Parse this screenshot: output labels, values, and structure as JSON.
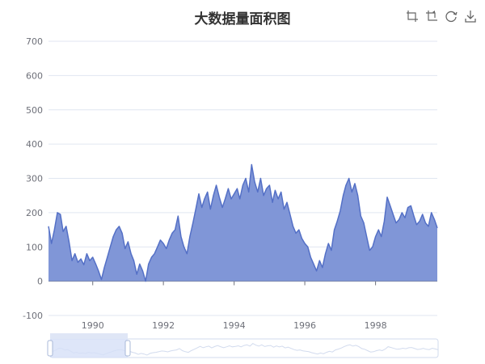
{
  "title": "大数据量面积图",
  "toolbox": {
    "icons": [
      "zoom-select-icon",
      "zoom-reset-icon",
      "restore-icon",
      "save-image-icon"
    ]
  },
  "colors": {
    "line": "#5470c6",
    "area": "#8096d7",
    "grid": "#e0e6f1",
    "axis": "#6e7079",
    "slider_fill": "#d6e0f7",
    "slider_border": "#d2dbee",
    "handle": "#a8b8d8"
  },
  "chart_data": {
    "type": "area",
    "title": "大数据量面积图",
    "xlabel": "",
    "ylabel": "",
    "ylim": [
      -100,
      700
    ],
    "y_ticks": [
      -100,
      0,
      100,
      200,
      300,
      400,
      500,
      600,
      700
    ],
    "x_tick_labels": [
      "1990",
      "1992",
      "1994",
      "1996",
      "1998"
    ],
    "x_range": [
      "1988-10-01",
      "1999-10-01"
    ],
    "series": [
      {
        "values": [
          [
            "1988-10-01",
            160
          ],
          [
            "1988-11-01",
            110
          ],
          [
            "1988-12-01",
            150
          ],
          [
            "1989-01-01",
            200
          ],
          [
            "1989-02-01",
            195
          ],
          [
            "1989-03-01",
            145
          ],
          [
            "1989-04-01",
            160
          ],
          [
            "1989-05-01",
            115
          ],
          [
            "1989-06-01",
            60
          ],
          [
            "1989-07-01",
            80
          ],
          [
            "1989-08-01",
            55
          ],
          [
            "1989-09-01",
            65
          ],
          [
            "1989-10-01",
            48
          ],
          [
            "1989-11-01",
            80
          ],
          [
            "1989-12-01",
            60
          ],
          [
            "1990-01-01",
            70
          ],
          [
            "1990-02-01",
            50
          ],
          [
            "1990-03-01",
            30
          ],
          [
            "1990-04-01",
            5
          ],
          [
            "1990-05-01",
            40
          ],
          [
            "1990-06-01",
            70
          ],
          [
            "1990-07-01",
            100
          ],
          [
            "1990-08-01",
            130
          ],
          [
            "1990-09-01",
            150
          ],
          [
            "1990-10-01",
            160
          ],
          [
            "1990-11-01",
            140
          ],
          [
            "1990-12-01",
            95
          ],
          [
            "1991-01-01",
            115
          ],
          [
            "1991-02-01",
            80
          ],
          [
            "1991-03-01",
            60
          ],
          [
            "1991-04-01",
            20
          ],
          [
            "1991-05-01",
            50
          ],
          [
            "1991-06-01",
            30
          ],
          [
            "1991-07-01",
            0
          ],
          [
            "1991-08-01",
            50
          ],
          [
            "1991-09-01",
            70
          ],
          [
            "1991-10-01",
            80
          ],
          [
            "1991-11-01",
            100
          ],
          [
            "1991-12-01",
            120
          ],
          [
            "1992-01-01",
            110
          ],
          [
            "1992-02-01",
            95
          ],
          [
            "1992-03-01",
            120
          ],
          [
            "1992-04-01",
            140
          ],
          [
            "1992-05-01",
            150
          ],
          [
            "1992-06-01",
            190
          ],
          [
            "1992-07-01",
            130
          ],
          [
            "1992-08-01",
            100
          ],
          [
            "1992-09-01",
            80
          ],
          [
            "1992-10-01",
            130
          ],
          [
            "1992-11-01",
            170
          ],
          [
            "1992-12-01",
            210
          ],
          [
            "1993-01-01",
            255
          ],
          [
            "1993-02-01",
            215
          ],
          [
            "1993-03-01",
            240
          ],
          [
            "1993-04-01",
            260
          ],
          [
            "1993-05-01",
            210
          ],
          [
            "1993-06-01",
            250
          ],
          [
            "1993-07-01",
            280
          ],
          [
            "1993-08-01",
            245
          ],
          [
            "1993-09-01",
            215
          ],
          [
            "1993-10-01",
            240
          ],
          [
            "1993-11-01",
            270
          ],
          [
            "1993-12-01",
            240
          ],
          [
            "1994-01-01",
            255
          ],
          [
            "1994-02-01",
            270
          ],
          [
            "1994-03-01",
            240
          ],
          [
            "1994-04-01",
            280
          ],
          [
            "1994-05-01",
            300
          ],
          [
            "1994-06-01",
            260
          ],
          [
            "1994-07-01",
            340
          ],
          [
            "1994-08-01",
            290
          ],
          [
            "1994-09-01",
            260
          ],
          [
            "1994-10-01",
            300
          ],
          [
            "1994-11-01",
            250
          ],
          [
            "1994-12-01",
            270
          ],
          [
            "1995-01-01",
            280
          ],
          [
            "1995-02-01",
            230
          ],
          [
            "1995-03-01",
            265
          ],
          [
            "1995-04-01",
            240
          ],
          [
            "1995-05-01",
            260
          ],
          [
            "1995-06-01",
            210
          ],
          [
            "1995-07-01",
            230
          ],
          [
            "1995-08-01",
            195
          ],
          [
            "1995-09-01",
            160
          ],
          [
            "1995-10-01",
            140
          ],
          [
            "1995-11-01",
            150
          ],
          [
            "1995-12-01",
            125
          ],
          [
            "1996-01-01",
            110
          ],
          [
            "1996-02-01",
            100
          ],
          [
            "1996-03-01",
            70
          ],
          [
            "1996-04-01",
            50
          ],
          [
            "1996-05-01",
            30
          ],
          [
            "1996-06-01",
            60
          ],
          [
            "1996-07-01",
            40
          ],
          [
            "1996-08-01",
            80
          ],
          [
            "1996-09-01",
            110
          ],
          [
            "1996-10-01",
            90
          ],
          [
            "1996-11-01",
            150
          ],
          [
            "1996-12-01",
            175
          ],
          [
            "1997-01-01",
            205
          ],
          [
            "1997-02-01",
            250
          ],
          [
            "1997-03-01",
            280
          ],
          [
            "1997-04-01",
            300
          ],
          [
            "1997-05-01",
            260
          ],
          [
            "1997-06-01",
            285
          ],
          [
            "1997-07-01",
            250
          ],
          [
            "1997-08-01",
            190
          ],
          [
            "1997-09-01",
            170
          ],
          [
            "1997-10-01",
            130
          ],
          [
            "1997-11-01",
            90
          ],
          [
            "1997-12-01",
            100
          ],
          [
            "1998-01-01",
            130
          ],
          [
            "1998-02-01",
            150
          ],
          [
            "1998-03-01",
            130
          ],
          [
            "1998-04-01",
            175
          ],
          [
            "1998-05-01",
            245
          ],
          [
            "1998-06-01",
            220
          ],
          [
            "1998-07-01",
            195
          ],
          [
            "1998-08-01",
            170
          ],
          [
            "1998-09-01",
            180
          ],
          [
            "1998-10-01",
            200
          ],
          [
            "1998-11-01",
            185
          ],
          [
            "1998-12-01",
            215
          ],
          [
            "1999-01-01",
            220
          ],
          [
            "1999-02-01",
            190
          ],
          [
            "1999-03-01",
            165
          ],
          [
            "1999-04-01",
            175
          ],
          [
            "1999-05-01",
            195
          ],
          [
            "1999-06-01",
            170
          ],
          [
            "1999-07-01",
            160
          ],
          [
            "1999-08-01",
            200
          ],
          [
            "1999-09-01",
            180
          ],
          [
            "1999-10-01",
            155
          ]
        ]
      }
    ],
    "grid": true,
    "zoom_window": [
      0,
      0.2
    ]
  }
}
